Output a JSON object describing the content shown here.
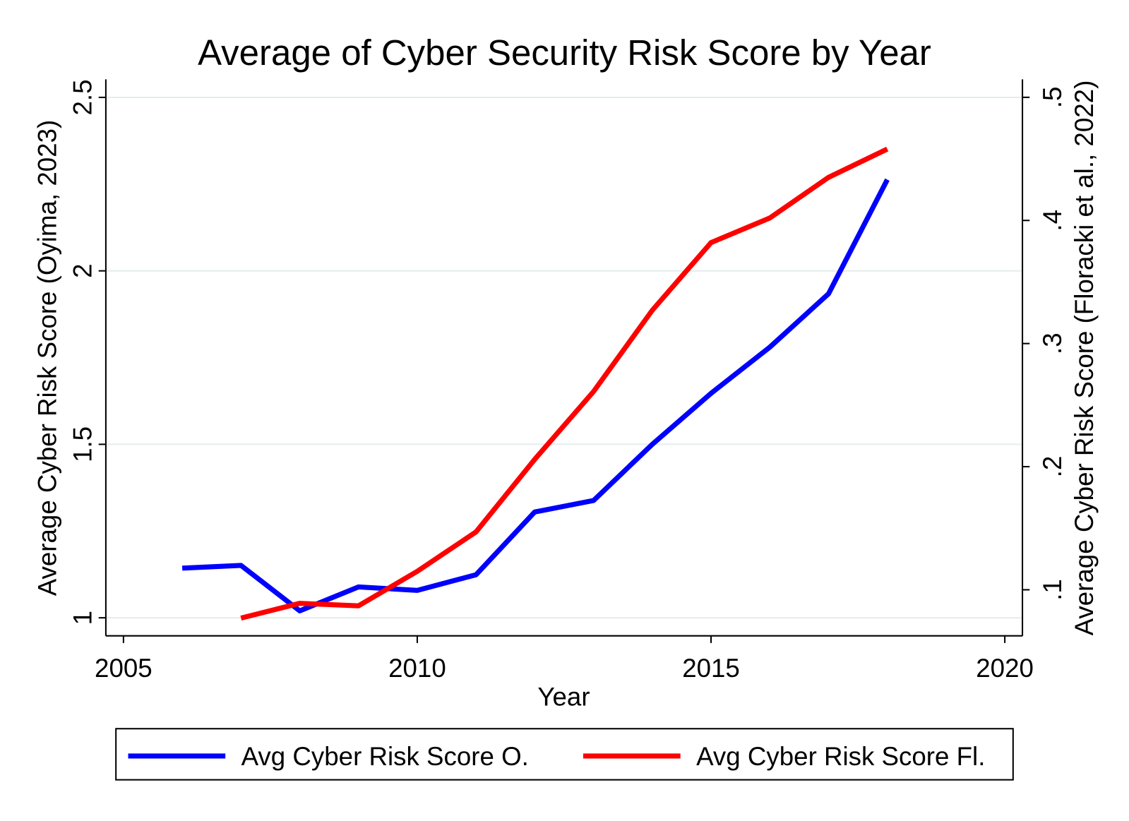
{
  "chart_data": {
    "type": "line",
    "title": "Average of Cyber Security Risk Score by Year",
    "x_label": "Year",
    "y_label": "Average Cyber Risk Score (Oyima, 2023)",
    "y2_label": "Average Cyber Risk Score (Floracki et al., 2022)",
    "x": [
      2006,
      2007,
      2008,
      2009,
      2010,
      2011,
      2012,
      2013,
      2014,
      2015,
      2016,
      2017,
      2018
    ],
    "series": [
      {
        "name": "Avg Cyber Risk Score O.",
        "color": "#0000ff",
        "values": [
          1.143,
          1.151,
          1.02,
          1.089,
          1.079,
          1.124,
          1.305,
          1.338,
          1.5,
          1.647,
          1.78,
          1.934,
          2.263
        ]
      },
      {
        "name": "Avg Cyber Risk Score Fl.",
        "color": "#ff0000",
        "axis": "y2",
        "values": [
          null,
          0.077,
          0.089,
          0.087,
          0.115,
          0.147,
          0.206,
          0.261,
          0.327,
          0.382,
          0.402,
          0.435,
          0.458
        ]
      }
    ],
    "xlim": [
      2004.7,
      2020.3
    ],
    "xticks": [
      2005,
      2010,
      2015,
      2020
    ],
    "ylim": [
      0.948,
      2.552
    ],
    "yticks": [
      1,
      1.5,
      2,
      2.5
    ],
    "y2lim": [
      0.0626,
      0.5146
    ],
    "y2ticks": [
      {
        "value": 0.1,
        "label": ".1"
      },
      {
        "value": 0.2,
        "label": ".2"
      },
      {
        "value": 0.3,
        "label": ".3"
      },
      {
        "value": 0.4,
        "label": ".4"
      },
      {
        "value": 0.5,
        "label": ".5"
      }
    ],
    "grid": true,
    "legend": "bottom"
  }
}
